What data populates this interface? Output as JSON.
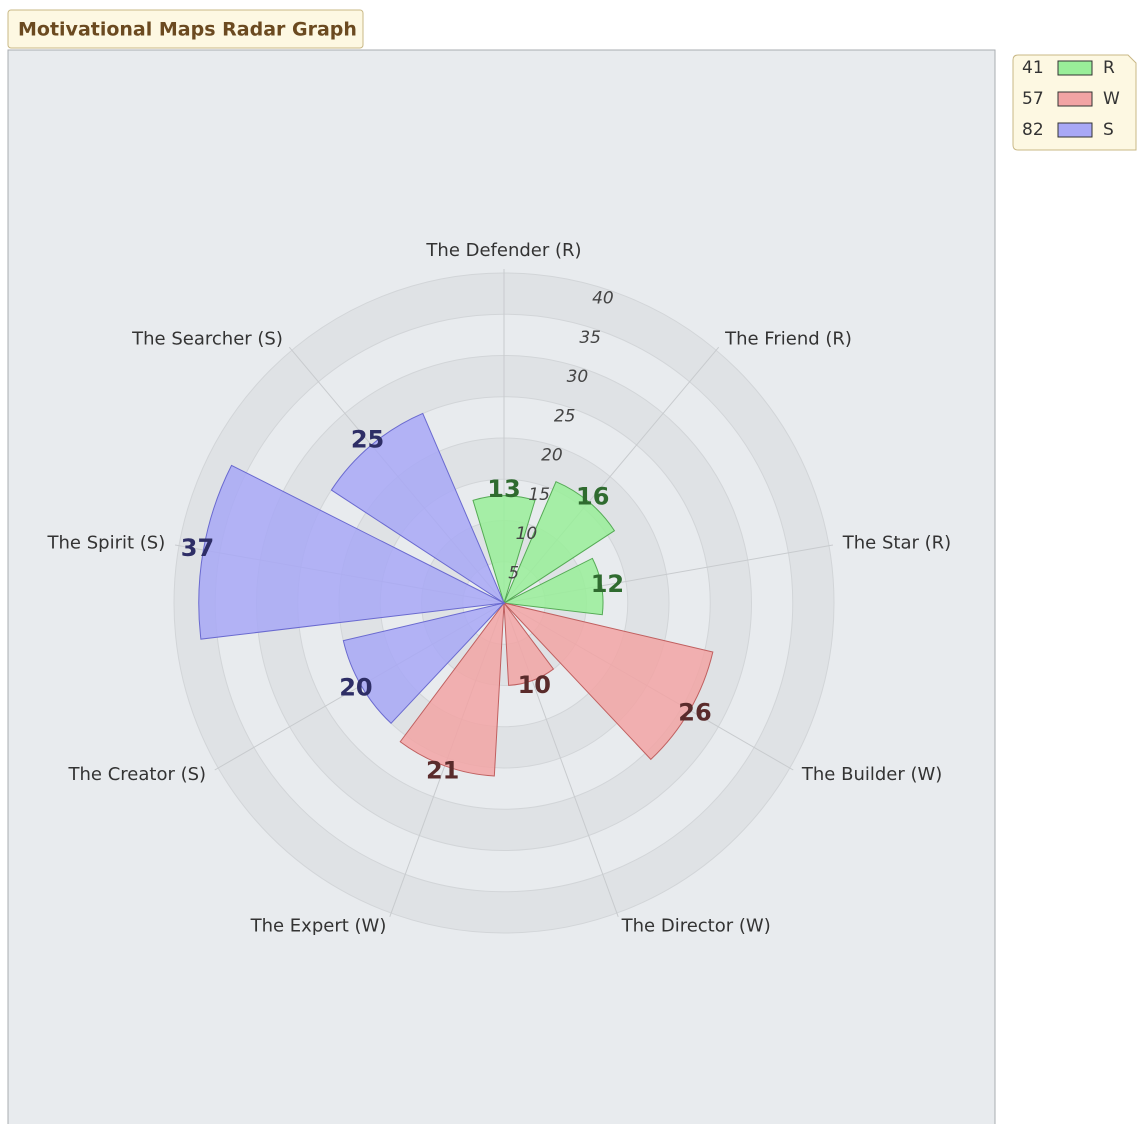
{
  "chart_data": {
    "type": "polar_area",
    "title": "Motivational Maps Radar Graph",
    "categories": [
      "The Defender (R)",
      "The Friend (R)",
      "The Star (R)",
      "The Builder (W)",
      "The Director (W)",
      "The Expert (W)",
      "The Creator (S)",
      "The Spirit (S)",
      "The Searcher (S)"
    ],
    "values": [
      13,
      16,
      12,
      26,
      10,
      21,
      20,
      37,
      25
    ],
    "groups": [
      0,
      0,
      0,
      1,
      1,
      1,
      2,
      2,
      2
    ],
    "series": [
      {
        "name": "R",
        "total": 41,
        "color": "#99ee99",
        "stroke": "#55aa55",
        "label_color": "#2f6b2f"
      },
      {
        "name": "W",
        "total": 57,
        "color": "#f2a4a4",
        "stroke": "#c06060",
        "label_color": "#5a2b2b"
      },
      {
        "name": "S",
        "total": 82,
        "color": "#a8a8f6",
        "stroke": "#6a6ad0",
        "label_color": "#2e2e66"
      }
    ],
    "ylim": [
      0,
      40
    ],
    "yticks": [
      5,
      10,
      15,
      20,
      25,
      30,
      35,
      40
    ],
    "grid": true
  }
}
